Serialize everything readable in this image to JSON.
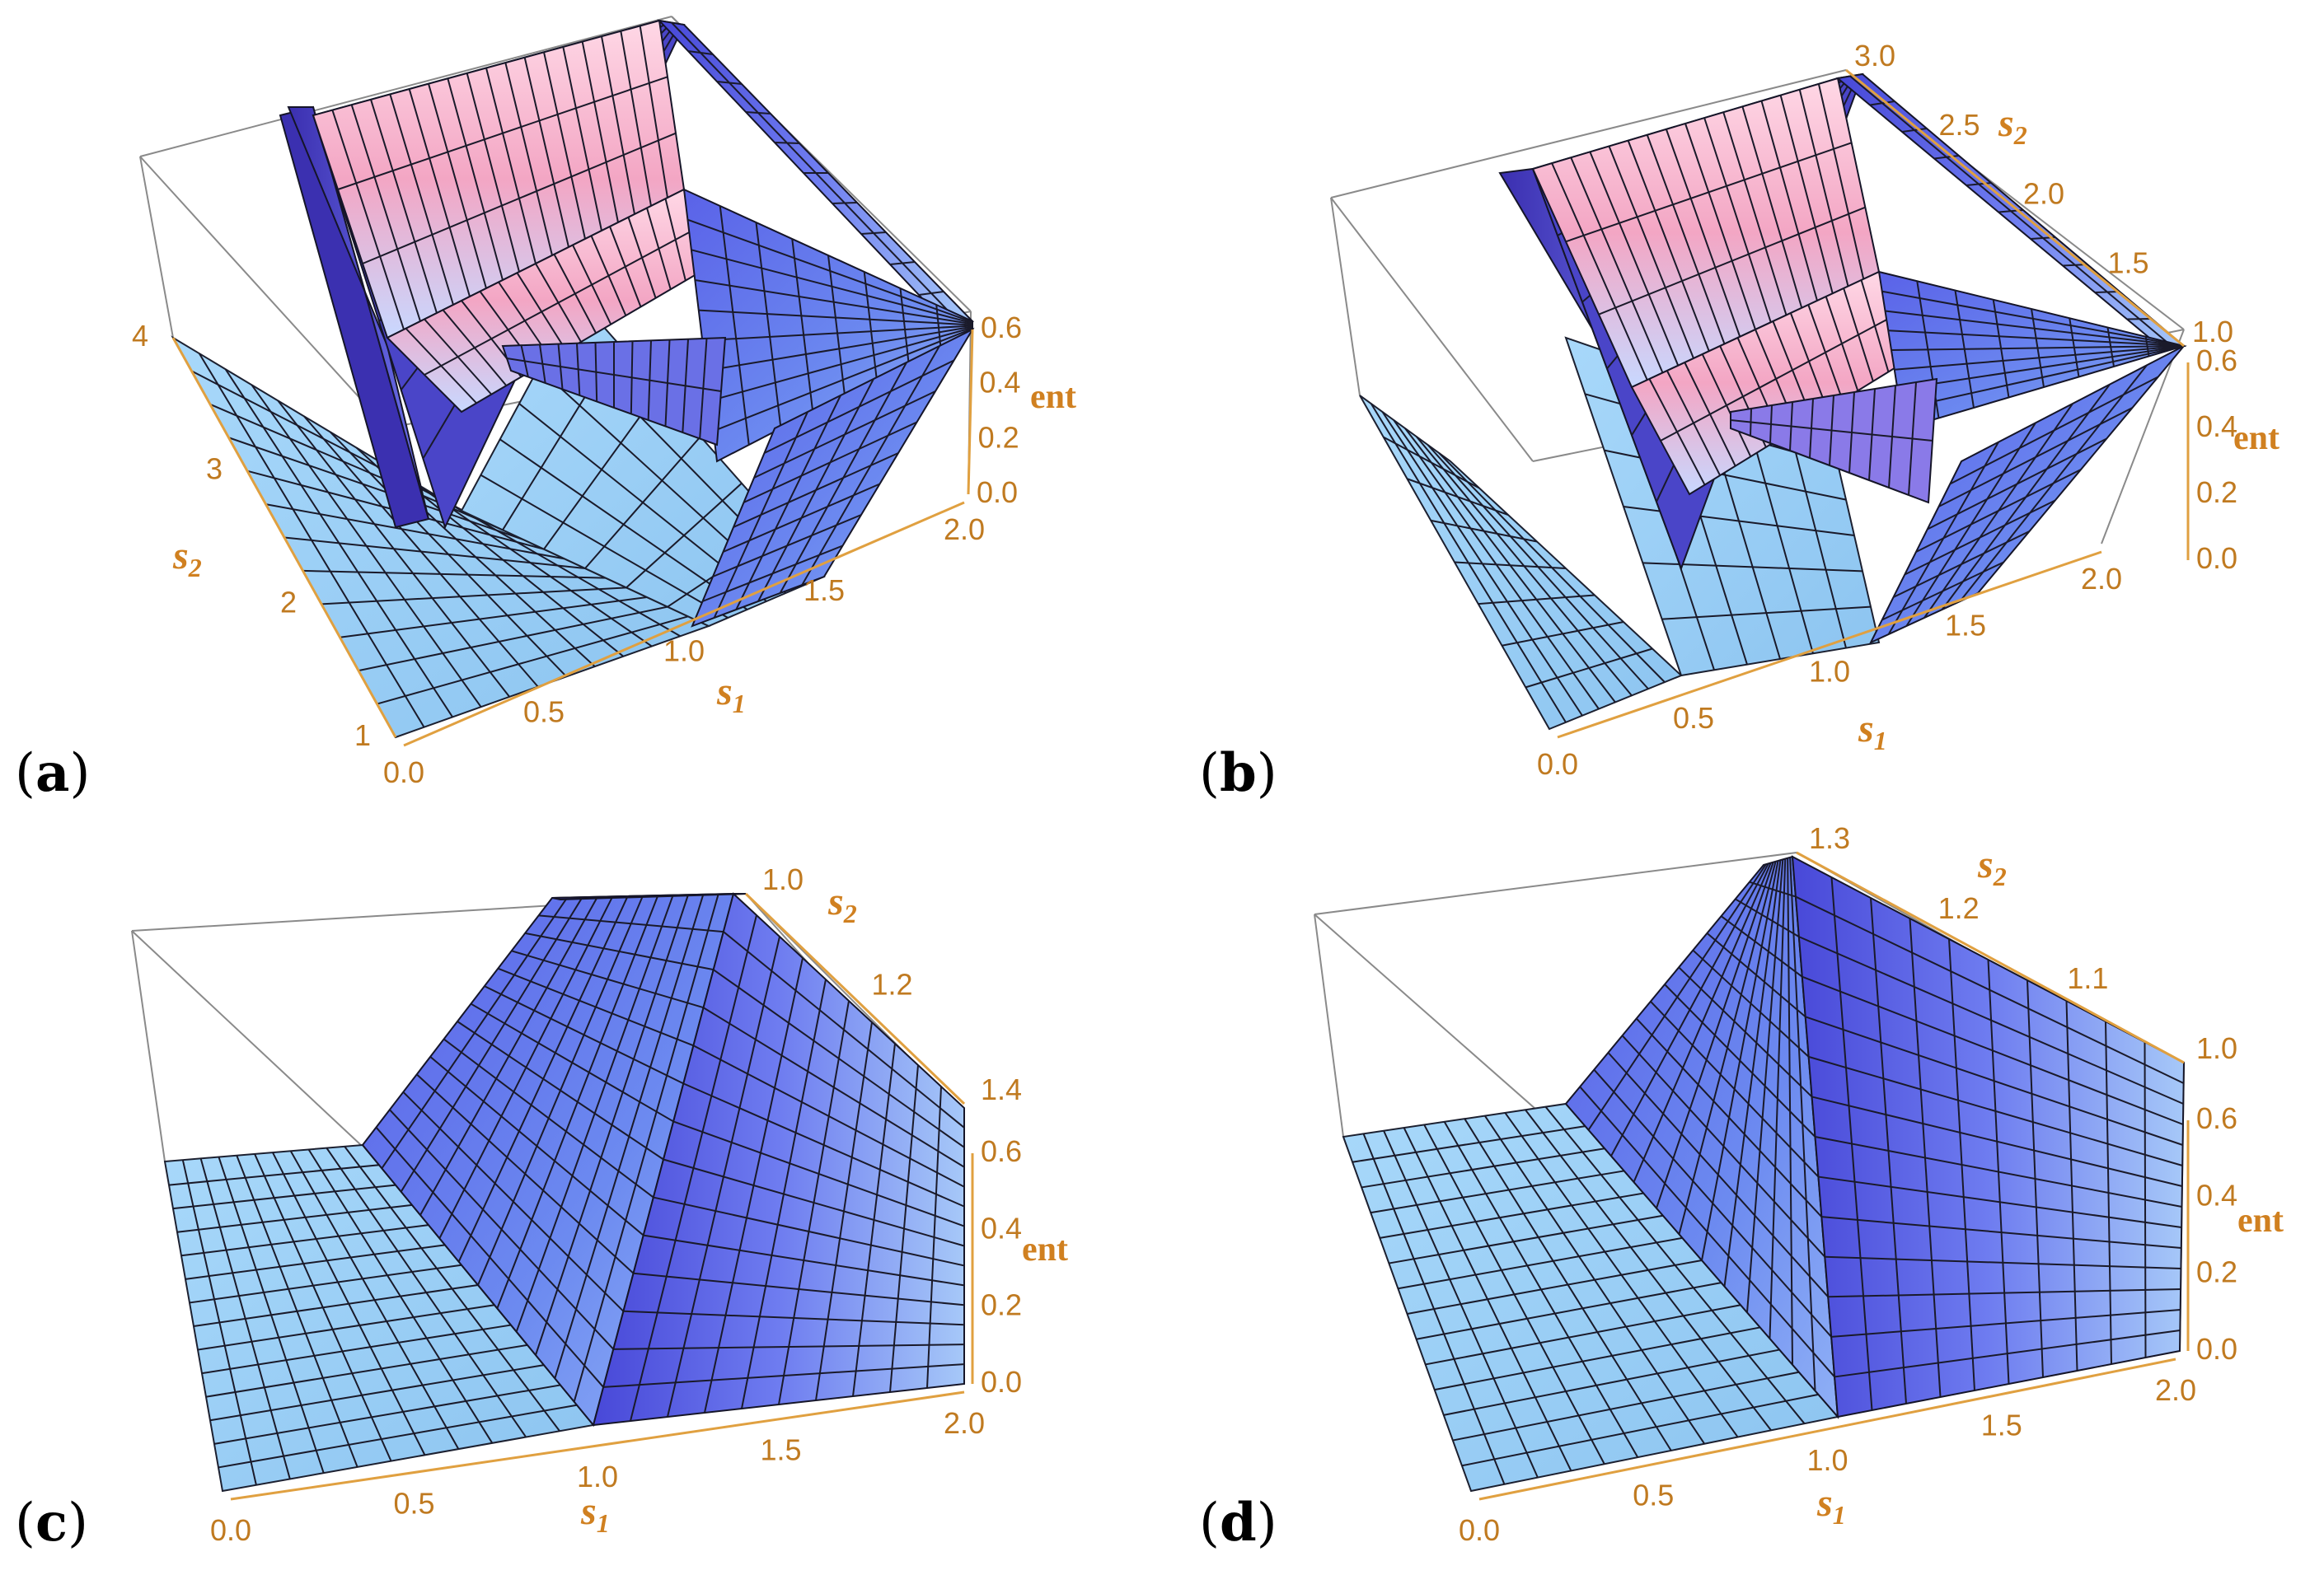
{
  "figure": {
    "panels": [
      {
        "id": "a",
        "label": "a",
        "s2_max": 4
      },
      {
        "id": "b",
        "label": "b",
        "s2_max": 3.0
      },
      {
        "id": "c",
        "label": "c",
        "s2_max": 1.4
      },
      {
        "id": "d",
        "label": "d",
        "s2_max": 1.3
      }
    ]
  },
  "colors": {
    "floor": "#9fd0f5",
    "surface_blue": "#5a5fe0",
    "surface_dark": "#3a32b0",
    "pink": "#f6b8cf",
    "axis_orange": "#d08020",
    "box_gray": "#8a8a8a"
  },
  "chart_data": [
    {
      "panel": "a",
      "type": "surface3d",
      "xlabel": "s",
      "xlabel_sub": "1",
      "ylabel": "s",
      "ylabel_sub": "2",
      "zlabel": "ent",
      "x_ticks": [
        "0.0",
        "0.5",
        "1.0",
        "1.5",
        "2.0"
      ],
      "y_ticks": [
        "1",
        "2",
        "3",
        "4"
      ],
      "z_ticks": [
        "0.0",
        "0.2",
        "0.4",
        "0.6"
      ],
      "xlim": [
        0,
        2
      ],
      "ylim": [
        1,
        4
      ],
      "zlim": [
        0,
        0.7
      ]
    },
    {
      "panel": "b",
      "type": "surface3d",
      "xlabel": "s",
      "xlabel_sub": "1",
      "ylabel": "s",
      "ylabel_sub": "2",
      "zlabel": "ent",
      "x_ticks": [
        "0.0",
        "0.5",
        "1.0",
        "1.5",
        "2.0"
      ],
      "y_ticks": [
        "1.0",
        "1.5",
        "2.0",
        "2.5",
        "3.0"
      ],
      "z_ticks": [
        "0.0",
        "0.2",
        "0.4",
        "0.6"
      ],
      "xlim": [
        0,
        2
      ],
      "ylim": [
        1,
        3
      ],
      "zlim": [
        0,
        0.7
      ]
    },
    {
      "panel": "c",
      "type": "surface3d",
      "xlabel": "s",
      "xlabel_sub": "1",
      "ylabel": "s",
      "ylabel_sub": "2",
      "zlabel": "ent",
      "x_ticks": [
        "0.0",
        "0.5",
        "1.0",
        "1.5",
        "2.0"
      ],
      "y_ticks": [
        "1.0",
        "1.2",
        "1.4"
      ],
      "z_ticks": [
        "0.0",
        "0.2",
        "0.4",
        "0.6"
      ],
      "xlim": [
        0,
        2
      ],
      "ylim": [
        1,
        1.4
      ],
      "zlim": [
        0,
        0.7
      ]
    },
    {
      "panel": "d",
      "type": "surface3d",
      "xlabel": "s",
      "xlabel_sub": "1",
      "ylabel": "s",
      "ylabel_sub": "2",
      "zlabel": "ent",
      "x_ticks": [
        "0.0",
        "0.5",
        "1.0",
        "1.5",
        "2.0"
      ],
      "y_ticks": [
        "1.0",
        "1.1",
        "1.2",
        "1.3"
      ],
      "z_ticks": [
        "0.0",
        "0.2",
        "0.4",
        "0.6"
      ],
      "xlim": [
        0,
        2
      ],
      "ylim": [
        1,
        1.3
      ],
      "zlim": [
        0,
        0.7
      ]
    }
  ]
}
